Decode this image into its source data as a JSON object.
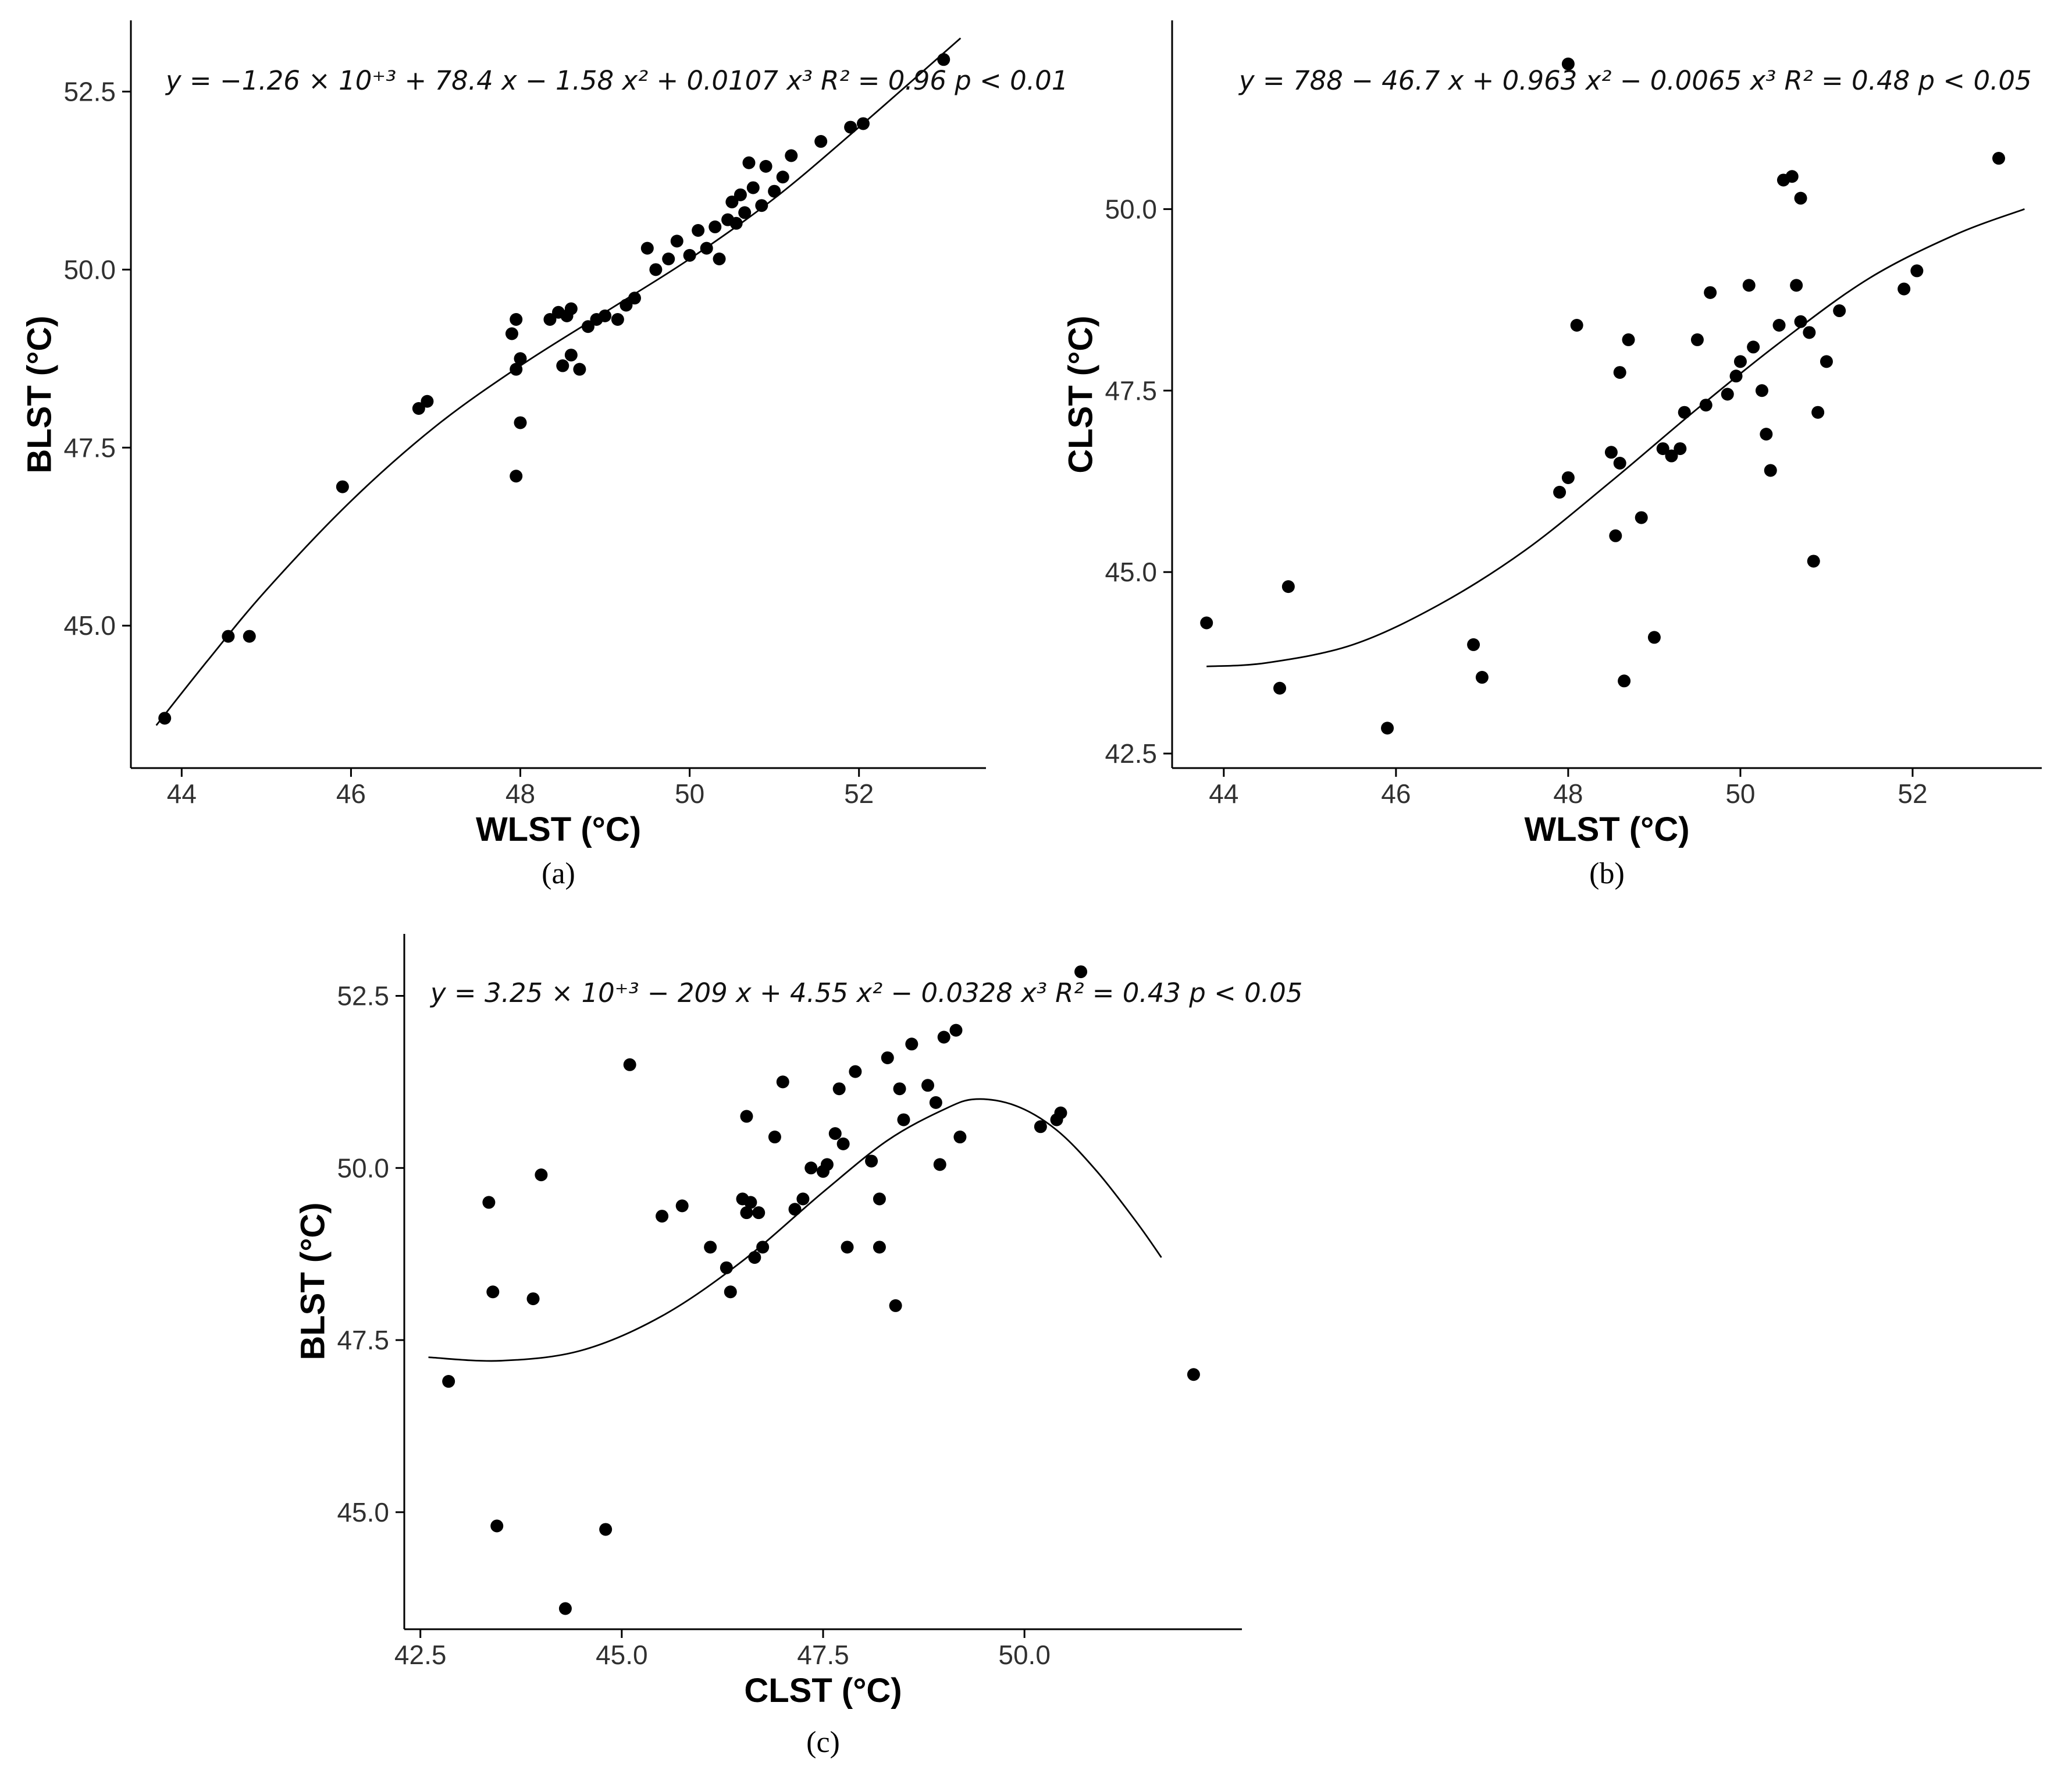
{
  "page": {
    "background": "#ffffff",
    "point_color": "#000000",
    "axis_color": "#000000",
    "curve_color": "#000000"
  },
  "chart_data": [
    {
      "id": "a",
      "type": "scatter",
      "caption": "(a)",
      "xlabel": "WLST (°C)",
      "ylabel": "BLST (°C)",
      "equation": "y = −1.26 × 10⁺³ + 78.4 x − 1.58 x² + 0.0107 x³   R² = 0.96   p < 0.01",
      "r_squared": 0.96,
      "p_value_label": "p < 0.01",
      "xlim": [
        43.4,
        53.5
      ],
      "ylim": [
        43.0,
        53.5
      ],
      "xticks": [
        44,
        46,
        48,
        50,
        52
      ],
      "xtick_labels": [
        "44",
        "46",
        "48",
        "50",
        "52"
      ],
      "yticks": [
        45.0,
        47.5,
        50.0,
        52.5
      ],
      "ytick_labels": [
        "45.0",
        "47.5",
        "50.0",
        "52.5"
      ],
      "grid": false,
      "legend": "none",
      "points": [
        [
          43.8,
          43.7
        ],
        [
          44.55,
          44.85
        ],
        [
          44.8,
          44.85
        ],
        [
          45.9,
          46.95
        ],
        [
          46.8,
          48.05
        ],
        [
          46.9,
          48.15
        ],
        [
          47.95,
          47.1
        ],
        [
          48.0,
          47.85
        ],
        [
          47.95,
          48.6
        ],
        [
          48.0,
          48.75
        ],
        [
          47.9,
          49.1
        ],
        [
          47.95,
          49.3
        ],
        [
          48.35,
          49.3
        ],
        [
          48.45,
          49.4
        ],
        [
          48.55,
          49.35
        ],
        [
          48.6,
          49.45
        ],
        [
          48.5,
          48.65
        ],
        [
          48.6,
          48.8
        ],
        [
          48.7,
          48.6
        ],
        [
          48.8,
          49.2
        ],
        [
          48.9,
          49.3
        ],
        [
          49.0,
          49.35
        ],
        [
          49.15,
          49.3
        ],
        [
          49.25,
          49.5
        ],
        [
          49.35,
          49.6
        ],
        [
          49.5,
          50.3
        ],
        [
          49.6,
          50.0
        ],
        [
          49.75,
          50.15
        ],
        [
          49.85,
          50.4
        ],
        [
          50.0,
          50.2
        ],
        [
          50.1,
          50.55
        ],
        [
          50.2,
          50.3
        ],
        [
          50.3,
          50.6
        ],
        [
          50.35,
          50.15
        ],
        [
          50.45,
          50.7
        ],
        [
          50.5,
          50.95
        ],
        [
          50.55,
          50.65
        ],
        [
          50.6,
          51.05
        ],
        [
          50.65,
          50.8
        ],
        [
          50.7,
          51.5
        ],
        [
          50.75,
          51.15
        ],
        [
          50.85,
          50.9
        ],
        [
          50.9,
          51.45
        ],
        [
          51.0,
          51.1
        ],
        [
          51.1,
          51.3
        ],
        [
          51.2,
          51.6
        ],
        [
          51.55,
          51.8
        ],
        [
          51.9,
          52.0
        ],
        [
          52.05,
          52.05
        ],
        [
          53.0,
          52.95
        ]
      ],
      "curve": [
        [
          43.7,
          43.6
        ],
        [
          44.3,
          44.5
        ],
        [
          45.0,
          45.5
        ],
        [
          46.0,
          46.75
        ],
        [
          47.0,
          47.8
        ],
        [
          48.0,
          48.65
        ],
        [
          49.0,
          49.4
        ],
        [
          50.0,
          50.15
        ],
        [
          51.0,
          51.0
        ],
        [
          52.0,
          52.0
        ],
        [
          53.2,
          53.25
        ]
      ]
    },
    {
      "id": "b",
      "type": "scatter",
      "caption": "(b)",
      "xlabel": "WLST (°C)",
      "ylabel": "CLST (°C)",
      "equation": "y = 788 − 46.7 x + 0.963 x² − 0.0065 x³   R² = 0.48   p < 0.05",
      "r_squared": 0.48,
      "p_value_label": "p < 0.05",
      "xlim": [
        43.4,
        53.5
      ],
      "ylim": [
        42.3,
        52.6
      ],
      "xticks": [
        44,
        46,
        48,
        50,
        52
      ],
      "xtick_labels": [
        "44",
        "46",
        "48",
        "50",
        "52"
      ],
      "yticks": [
        42.5,
        45.0,
        47.5,
        50.0
      ],
      "ytick_labels": [
        "42.5",
        "45.0",
        "47.5",
        "50.0"
      ],
      "grid": false,
      "legend": "none",
      "points": [
        [
          43.8,
          44.3
        ],
        [
          44.65,
          43.4
        ],
        [
          44.75,
          44.8
        ],
        [
          45.9,
          42.85
        ],
        [
          46.9,
          44.0
        ],
        [
          47.0,
          43.55
        ],
        [
          48.0,
          52.0
        ],
        [
          47.9,
          46.1
        ],
        [
          48.0,
          46.3
        ],
        [
          48.1,
          48.4
        ],
        [
          48.5,
          46.65
        ],
        [
          48.55,
          45.5
        ],
        [
          48.6,
          46.5
        ],
        [
          48.6,
          47.75
        ],
        [
          48.7,
          48.2
        ],
        [
          48.65,
          43.5
        ],
        [
          48.85,
          45.75
        ],
        [
          49.0,
          44.1
        ],
        [
          49.1,
          46.7
        ],
        [
          49.2,
          46.6
        ],
        [
          49.3,
          46.7
        ],
        [
          49.35,
          47.2
        ],
        [
          49.5,
          48.2
        ],
        [
          49.6,
          47.3
        ],
        [
          49.65,
          48.85
        ],
        [
          49.85,
          47.45
        ],
        [
          49.95,
          47.7
        ],
        [
          50.0,
          47.9
        ],
        [
          50.1,
          48.95
        ],
        [
          50.15,
          48.1
        ],
        [
          50.25,
          47.5
        ],
        [
          50.3,
          46.9
        ],
        [
          50.35,
          46.4
        ],
        [
          50.45,
          48.4
        ],
        [
          50.5,
          50.4
        ],
        [
          50.6,
          50.45
        ],
        [
          50.65,
          48.95
        ],
        [
          50.7,
          50.15
        ],
        [
          50.7,
          48.45
        ],
        [
          50.8,
          48.3
        ],
        [
          50.85,
          45.15
        ],
        [
          50.9,
          47.2
        ],
        [
          51.0,
          47.9
        ],
        [
          51.15,
          48.6
        ],
        [
          51.9,
          48.9
        ],
        [
          52.05,
          49.15
        ],
        [
          53.0,
          50.7
        ]
      ],
      "curve": [
        [
          43.8,
          43.7
        ],
        [
          44.5,
          43.75
        ],
        [
          45.5,
          44.0
        ],
        [
          46.5,
          44.55
        ],
        [
          47.5,
          45.3
        ],
        [
          48.5,
          46.25
        ],
        [
          49.5,
          47.25
        ],
        [
          50.5,
          48.2
        ],
        [
          51.5,
          49.05
        ],
        [
          52.5,
          49.65
        ],
        [
          53.3,
          50.0
        ]
      ]
    },
    {
      "id": "c",
      "type": "scatter",
      "caption": "(c)",
      "xlabel": "CLST (°C)",
      "ylabel": "BLST (°C)",
      "equation": "y = 3.25 × 10⁺³ − 209 x + 4.55 x² − 0.0328 x³   R² = 0.43   p < 0.05",
      "r_squared": 0.43,
      "p_value_label": "p < 0.05",
      "xlim": [
        42.3,
        52.7
      ],
      "ylim": [
        43.3,
        53.4
      ],
      "xticks": [
        42.5,
        45.0,
        47.5,
        50.0
      ],
      "xtick_labels": [
        "42.5",
        "45.0",
        "47.5",
        "50.0"
      ],
      "yticks": [
        45.0,
        47.5,
        50.0,
        52.5
      ],
      "ytick_labels": [
        "45.0",
        "47.5",
        "50.0",
        "52.5"
      ],
      "grid": false,
      "legend": "none",
      "points": [
        [
          42.85,
          46.9
        ],
        [
          43.35,
          49.5
        ],
        [
          43.4,
          48.2
        ],
        [
          43.45,
          44.8
        ],
        [
          43.9,
          48.1
        ],
        [
          44.0,
          49.9
        ],
        [
          44.3,
          43.6
        ],
        [
          44.8,
          44.75
        ],
        [
          45.1,
          51.5
        ],
        [
          45.5,
          49.3
        ],
        [
          45.75,
          49.45
        ],
        [
          46.1,
          48.85
        ],
        [
          46.3,
          48.55
        ],
        [
          46.35,
          48.2
        ],
        [
          46.5,
          49.55
        ],
        [
          46.55,
          49.35
        ],
        [
          46.55,
          50.75
        ],
        [
          46.6,
          49.5
        ],
        [
          46.65,
          48.7
        ],
        [
          46.7,
          49.35
        ],
        [
          46.75,
          48.85
        ],
        [
          46.9,
          50.45
        ],
        [
          47.0,
          51.25
        ],
        [
          47.15,
          49.4
        ],
        [
          47.25,
          49.55
        ],
        [
          47.35,
          50.0
        ],
        [
          47.5,
          49.95
        ],
        [
          47.55,
          50.05
        ],
        [
          47.65,
          50.5
        ],
        [
          47.7,
          51.15
        ],
        [
          47.75,
          50.35
        ],
        [
          47.8,
          48.85
        ],
        [
          47.9,
          51.4
        ],
        [
          48.1,
          50.1
        ],
        [
          48.2,
          49.55
        ],
        [
          48.2,
          48.85
        ],
        [
          48.3,
          51.6
        ],
        [
          48.4,
          48.0
        ],
        [
          48.45,
          51.15
        ],
        [
          48.5,
          50.7
        ],
        [
          48.6,
          51.8
        ],
        [
          48.8,
          51.2
        ],
        [
          48.9,
          50.95
        ],
        [
          48.95,
          50.05
        ],
        [
          49.0,
          51.9
        ],
        [
          49.15,
          52.0
        ],
        [
          49.2,
          50.45
        ],
        [
          50.2,
          50.6
        ],
        [
          50.4,
          50.7
        ],
        [
          50.45,
          50.8
        ],
        [
          50.7,
          52.85
        ],
        [
          52.1,
          47.0
        ]
      ],
      "curve": [
        [
          42.6,
          47.25
        ],
        [
          43.5,
          47.2
        ],
        [
          44.5,
          47.35
        ],
        [
          45.5,
          47.85
        ],
        [
          46.5,
          48.65
        ],
        [
          47.5,
          49.65
        ],
        [
          48.3,
          50.4
        ],
        [
          49.0,
          50.85
        ],
        [
          49.4,
          51.0
        ],
        [
          49.9,
          50.9
        ],
        [
          50.4,
          50.55
        ],
        [
          50.9,
          49.95
        ],
        [
          51.4,
          49.2
        ],
        [
          51.7,
          48.7
        ]
      ]
    }
  ]
}
